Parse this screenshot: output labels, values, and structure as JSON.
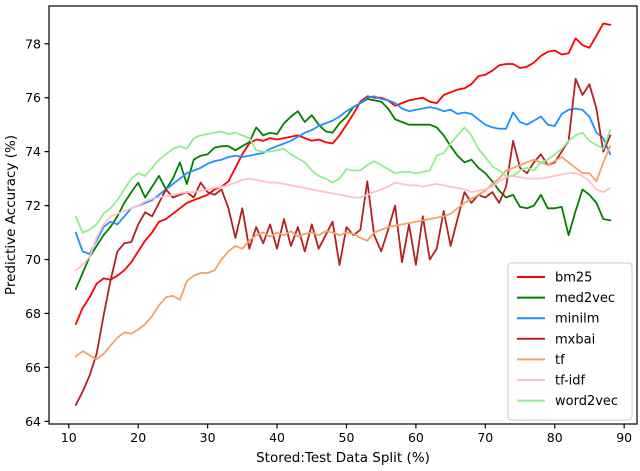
{
  "figure": {
    "background": "#ffffff",
    "axis_color": "#000000",
    "legend_border_color": "#cccccc",
    "legend_background": "#ffffff"
  },
  "chart_data": {
    "type": "line",
    "title": "",
    "xlabel": "Stored:Test Data Split (%)",
    "ylabel": "Predictive Accuracy (%)",
    "xlim": [
      7.15,
      91.85
    ],
    "ylim": [
      63.9,
      79.4
    ],
    "xticks": [
      10,
      20,
      30,
      40,
      50,
      60,
      70,
      80,
      90
    ],
    "yticks": [
      64,
      66,
      68,
      70,
      72,
      74,
      76,
      78
    ],
    "grid": false,
    "legend_position": "lower right",
    "x": [
      11,
      12,
      13,
      14,
      15,
      16,
      17,
      18,
      19,
      20,
      21,
      22,
      23,
      24,
      25,
      26,
      27,
      28,
      29,
      30,
      31,
      32,
      33,
      34,
      35,
      36,
      37,
      38,
      39,
      40,
      41,
      42,
      43,
      44,
      45,
      46,
      47,
      48,
      49,
      50,
      51,
      52,
      53,
      54,
      55,
      56,
      57,
      58,
      59,
      60,
      61,
      62,
      63,
      64,
      65,
      66,
      67,
      68,
      69,
      70,
      71,
      72,
      73,
      74,
      75,
      76,
      77,
      78,
      79,
      80,
      81,
      82,
      83,
      84,
      85,
      86,
      87,
      88
    ],
    "series": [
      {
        "name": "bm25",
        "color": "#ff0000",
        "values": [
          67.6,
          68.2,
          68.6,
          69.1,
          69.3,
          69.25,
          69.4,
          69.6,
          69.9,
          70.3,
          70.7,
          71.0,
          71.4,
          71.5,
          71.7,
          71.9,
          72.1,
          72.2,
          72.3,
          72.4,
          72.6,
          72.7,
          72.9,
          73.4,
          73.9,
          74.3,
          74.45,
          74.4,
          74.5,
          74.45,
          74.5,
          74.55,
          74.6,
          74.5,
          74.4,
          74.45,
          74.35,
          74.3,
          74.6,
          75.0,
          75.4,
          75.85,
          76.05,
          76.0,
          76.0,
          75.9,
          75.7,
          75.8,
          75.9,
          75.95,
          76.0,
          75.85,
          75.8,
          76.1,
          76.2,
          76.3,
          76.35,
          76.5,
          76.8,
          76.85,
          77.0,
          77.2,
          77.25,
          77.25,
          77.1,
          77.15,
          77.3,
          77.55,
          77.7,
          77.75,
          77.6,
          77.65,
          78.2,
          77.95,
          77.85,
          78.3,
          78.75,
          78.7
        ]
      },
      {
        "name": "med2vec",
        "color": "#008000",
        "values": [
          68.9,
          69.5,
          70.1,
          70.5,
          70.9,
          71.2,
          71.6,
          72.1,
          72.5,
          72.85,
          72.3,
          72.7,
          73.1,
          72.6,
          73.0,
          73.6,
          72.8,
          73.7,
          73.85,
          73.9,
          74.15,
          74.2,
          74.2,
          74.05,
          74.2,
          74.35,
          74.9,
          74.6,
          74.7,
          74.65,
          75.05,
          75.3,
          75.5,
          75.1,
          75.35,
          75.0,
          74.75,
          74.7,
          75.05,
          75.3,
          75.65,
          75.8,
          75.95,
          75.9,
          75.85,
          75.6,
          75.2,
          75.1,
          75.0,
          75.0,
          75.0,
          75.0,
          74.9,
          74.6,
          74.2,
          73.85,
          73.6,
          73.7,
          73.4,
          73.2,
          72.9,
          72.55,
          72.3,
          72.4,
          71.95,
          71.9,
          72.0,
          72.4,
          71.9,
          71.9,
          71.95,
          70.9,
          71.8,
          72.6,
          72.4,
          72.1,
          71.5,
          71.45
        ]
      },
      {
        "name": "minilm",
        "color": "#1e90ff",
        "values": [
          71.0,
          70.3,
          70.2,
          70.7,
          71.2,
          71.4,
          71.3,
          71.6,
          71.9,
          72.0,
          72.1,
          72.2,
          72.4,
          72.6,
          72.8,
          73.0,
          73.2,
          73.3,
          73.4,
          73.55,
          73.65,
          73.7,
          73.8,
          73.85,
          73.8,
          73.85,
          73.9,
          73.95,
          74.1,
          74.2,
          74.3,
          74.4,
          74.55,
          74.7,
          74.8,
          74.95,
          75.05,
          75.15,
          75.3,
          75.5,
          75.65,
          75.8,
          76.0,
          76.05,
          75.95,
          75.9,
          75.8,
          75.6,
          75.5,
          75.55,
          75.6,
          75.65,
          75.6,
          75.5,
          75.55,
          75.4,
          75.45,
          75.4,
          75.2,
          75.0,
          74.9,
          74.85,
          74.85,
          75.45,
          75.1,
          75.0,
          75.15,
          75.3,
          75.0,
          74.95,
          75.4,
          75.55,
          75.6,
          75.55,
          75.3,
          74.7,
          74.5,
          73.9
        ]
      },
      {
        "name": "mxbai",
        "color": "#b22222",
        "values": [
          64.6,
          65.1,
          65.7,
          66.5,
          67.9,
          69.2,
          70.3,
          70.6,
          70.65,
          71.3,
          71.75,
          71.6,
          72.1,
          72.6,
          72.3,
          72.4,
          72.5,
          72.3,
          72.85,
          72.5,
          72.4,
          72.6,
          71.9,
          70.8,
          71.9,
          70.4,
          71.2,
          70.6,
          71.3,
          70.4,
          71.5,
          70.5,
          71.2,
          70.3,
          71.3,
          70.4,
          70.9,
          71.4,
          69.8,
          71.2,
          70.9,
          71.1,
          72.9,
          70.9,
          70.3,
          71.1,
          72.0,
          69.9,
          71.3,
          69.8,
          71.6,
          70.0,
          70.4,
          71.8,
          70.5,
          71.5,
          72.5,
          72.1,
          72.4,
          72.3,
          72.5,
          72.1,
          72.7,
          74.4,
          73.4,
          73.2,
          73.6,
          73.9,
          73.5,
          73.6,
          74.0,
          74.4,
          76.7,
          76.1,
          76.5,
          75.6,
          74.0,
          74.6
        ]
      },
      {
        "name": "tf",
        "color": "#f4a460",
        "values": [
          66.4,
          66.6,
          66.45,
          66.3,
          66.5,
          66.8,
          67.1,
          67.3,
          67.25,
          67.4,
          67.6,
          67.9,
          68.3,
          68.6,
          68.65,
          68.5,
          69.2,
          69.4,
          69.5,
          69.5,
          69.6,
          70.0,
          70.3,
          70.5,
          70.4,
          70.7,
          70.9,
          71.0,
          70.85,
          71.0,
          70.9,
          71.05,
          70.85,
          70.95,
          71.0,
          70.9,
          71.05,
          71.0,
          70.9,
          71.0,
          70.95,
          70.8,
          70.7,
          71.0,
          71.1,
          71.2,
          71.25,
          71.3,
          71.35,
          71.4,
          71.45,
          71.5,
          71.55,
          71.6,
          71.7,
          71.9,
          72.1,
          72.25,
          72.4,
          72.55,
          72.8,
          73.0,
          73.3,
          73.4,
          73.5,
          73.6,
          73.7,
          73.6,
          73.5,
          73.65,
          73.8,
          73.6,
          73.4,
          73.2,
          73.2,
          72.9,
          73.6,
          74.2
        ]
      },
      {
        "name": "tf-idf",
        "color": "#ffc0cb",
        "values": [
          69.6,
          69.8,
          70.1,
          70.8,
          71.3,
          71.6,
          71.7,
          71.8,
          71.9,
          72.0,
          72.15,
          72.25,
          72.3,
          72.35,
          72.4,
          72.45,
          72.5,
          72.5,
          72.55,
          72.6,
          72.65,
          72.7,
          72.75,
          72.85,
          72.95,
          73.0,
          72.95,
          72.9,
          72.85,
          72.85,
          72.8,
          72.75,
          72.7,
          72.65,
          72.6,
          72.55,
          72.5,
          72.45,
          72.4,
          72.35,
          72.3,
          72.3,
          72.4,
          72.5,
          72.6,
          72.7,
          72.85,
          72.8,
          72.75,
          72.75,
          72.7,
          72.75,
          72.8,
          72.75,
          72.7,
          72.65,
          72.6,
          72.5,
          72.55,
          72.6,
          72.7,
          72.9,
          73.05,
          73.1,
          73.05,
          73.0,
          73.0,
          73.0,
          73.05,
          73.1,
          73.15,
          73.2,
          73.2,
          73.1,
          72.9,
          72.6,
          72.5,
          72.65
        ]
      },
      {
        "name": "word2vec",
        "color": "#90ee90",
        "values": [
          71.6,
          71.0,
          71.1,
          71.3,
          71.7,
          71.9,
          72.2,
          72.6,
          73.0,
          73.2,
          73.1,
          73.4,
          73.7,
          73.9,
          74.1,
          74.2,
          74.1,
          74.5,
          74.6,
          74.65,
          74.7,
          74.75,
          74.65,
          74.7,
          74.6,
          74.5,
          74.05,
          74.0,
          74.0,
          74.05,
          74.1,
          73.9,
          73.75,
          73.6,
          73.3,
          73.1,
          73.0,
          72.85,
          73.0,
          73.35,
          73.3,
          73.3,
          73.5,
          73.65,
          73.5,
          73.35,
          73.2,
          73.25,
          73.25,
          73.2,
          73.25,
          73.3,
          73.85,
          73.95,
          74.3,
          74.6,
          74.9,
          74.6,
          74.1,
          73.8,
          73.45,
          73.3,
          73.1,
          73.1,
          73.3,
          73.4,
          73.3,
          73.6,
          73.7,
          73.9,
          74.1,
          74.4,
          74.6,
          74.7,
          74.4,
          74.25,
          74.1,
          74.8
        ]
      }
    ]
  }
}
